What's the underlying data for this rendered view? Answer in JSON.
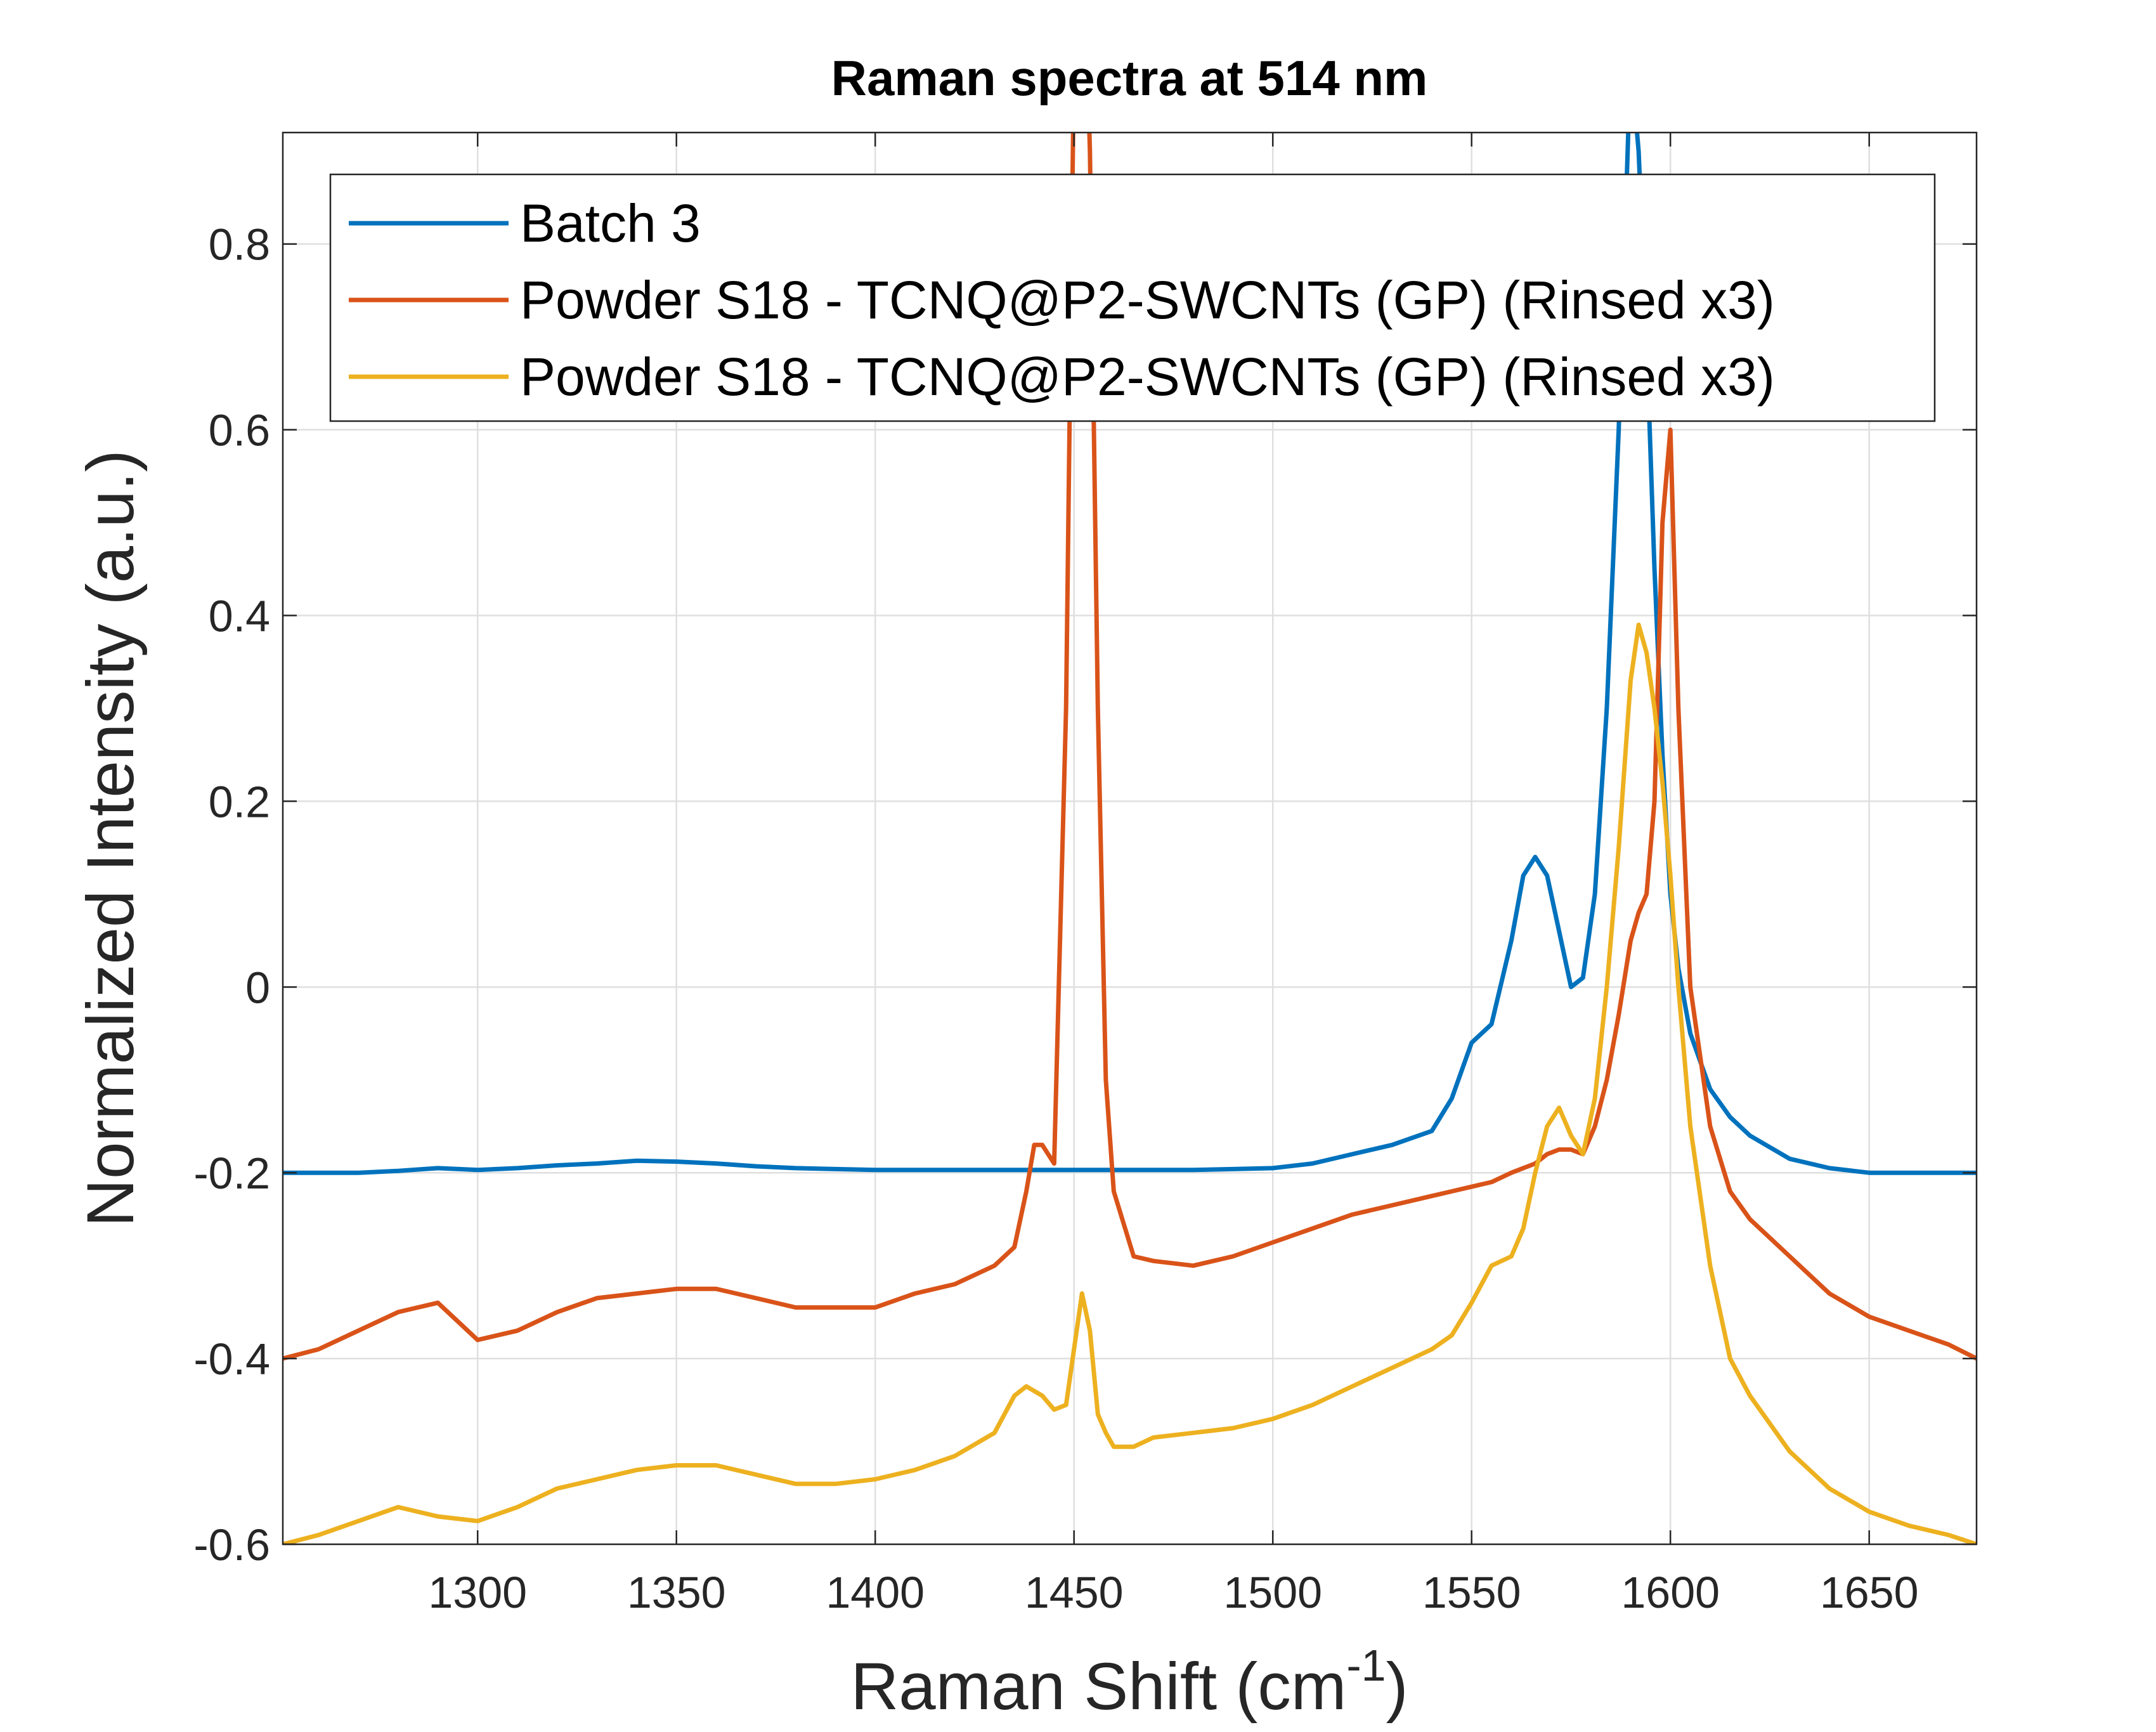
{
  "chart_data": {
    "type": "line",
    "title": "Raman spectra at 514 nm",
    "xlabel": {
      "text": "Raman Shift (cm",
      "sup": "-1",
      "end": ")"
    },
    "ylabel": "Normalized Intensity (a.u.)",
    "xlim": [
      1251,
      1677
    ],
    "ylim": [
      -0.6,
      0.92
    ],
    "xticks": [
      1300,
      1350,
      1400,
      1450,
      1500,
      1550,
      1600,
      1650
    ],
    "yticks": [
      -0.6,
      -0.4,
      -0.2,
      0,
      0.2,
      0.4,
      0.6,
      0.8
    ],
    "grid": true,
    "legend": "upper left",
    "x": [
      1251,
      1260,
      1270,
      1280,
      1290,
      1300,
      1310,
      1320,
      1330,
      1340,
      1350,
      1360,
      1370,
      1380,
      1390,
      1400,
      1410,
      1420,
      1430,
      1435,
      1438,
      1440,
      1442,
      1445,
      1448,
      1450,
      1452,
      1454,
      1456,
      1458,
      1460,
      1465,
      1470,
      1480,
      1490,
      1500,
      1510,
      1520,
      1530,
      1540,
      1545,
      1550,
      1555,
      1560,
      1563,
      1566,
      1569,
      1572,
      1575,
      1578,
      1581,
      1584,
      1587,
      1590,
      1592,
      1594,
      1596,
      1598,
      1600,
      1602,
      1605,
      1610,
      1615,
      1620,
      1630,
      1640,
      1650,
      1660,
      1670,
      1677
    ],
    "series": [
      {
        "name": "Batch 3",
        "color": "#0072BD",
        "values": [
          -0.2,
          -0.2,
          -0.2,
          -0.198,
          -0.195,
          -0.197,
          -0.195,
          -0.192,
          -0.19,
          -0.187,
          -0.188,
          -0.19,
          -0.193,
          -0.195,
          -0.196,
          -0.197,
          -0.197,
          -0.197,
          -0.197,
          -0.197,
          -0.197,
          -0.197,
          -0.197,
          -0.197,
          -0.197,
          -0.197,
          -0.197,
          -0.197,
          -0.197,
          -0.197,
          -0.197,
          -0.197,
          -0.197,
          -0.197,
          -0.196,
          -0.195,
          -0.19,
          -0.18,
          -0.17,
          -0.155,
          -0.12,
          -0.06,
          -0.04,
          0.05,
          0.12,
          0.14,
          0.12,
          0.06,
          0.0,
          0.01,
          0.1,
          0.3,
          0.6,
          1.0,
          0.9,
          0.7,
          0.45,
          0.25,
          0.1,
          0.02,
          -0.05,
          -0.11,
          -0.14,
          -0.16,
          -0.185,
          -0.195,
          -0.2,
          -0.2,
          -0.2,
          -0.2
        ]
      },
      {
        "name": "Powder S18 - TCNQ@P2-SWCNTs (GP) (Rinsed x3)",
        "color": "#D95319",
        "values": [
          -0.4,
          -0.39,
          -0.37,
          -0.35,
          -0.34,
          -0.38,
          -0.37,
          -0.35,
          -0.335,
          -0.33,
          -0.325,
          -0.325,
          -0.335,
          -0.345,
          -0.345,
          -0.345,
          -0.33,
          -0.32,
          -0.3,
          -0.28,
          -0.22,
          -0.17,
          -0.17,
          -0.19,
          0.3,
          1.0,
          1.2,
          0.9,
          0.3,
          -0.1,
          -0.22,
          -0.29,
          -0.295,
          -0.3,
          -0.29,
          -0.275,
          -0.26,
          -0.245,
          -0.235,
          -0.225,
          -0.22,
          -0.215,
          -0.21,
          -0.2,
          -0.195,
          -0.19,
          -0.18,
          -0.175,
          -0.175,
          -0.18,
          -0.15,
          -0.1,
          -0.03,
          0.05,
          0.08,
          0.1,
          0.2,
          0.5,
          0.6,
          0.3,
          0.0,
          -0.15,
          -0.22,
          -0.25,
          -0.29,
          -0.33,
          -0.355,
          -0.37,
          -0.385,
          -0.4
        ]
      },
      {
        "name": "Powder S18 - TCNQ@P2-SWCNTs (GP) (Rinsed x3)",
        "color": "#EDB120",
        "values": [
          -0.6,
          -0.59,
          -0.575,
          -0.56,
          -0.57,
          -0.575,
          -0.56,
          -0.54,
          -0.53,
          -0.52,
          -0.515,
          -0.515,
          -0.525,
          -0.535,
          -0.535,
          -0.53,
          -0.52,
          -0.505,
          -0.48,
          -0.44,
          -0.43,
          -0.435,
          -0.44,
          -0.455,
          -0.45,
          -0.39,
          -0.33,
          -0.37,
          -0.46,
          -0.48,
          -0.495,
          -0.495,
          -0.485,
          -0.48,
          -0.475,
          -0.465,
          -0.45,
          -0.43,
          -0.41,
          -0.39,
          -0.375,
          -0.34,
          -0.3,
          -0.29,
          -0.26,
          -0.2,
          -0.15,
          -0.13,
          -0.16,
          -0.18,
          -0.12,
          0.0,
          0.15,
          0.33,
          0.39,
          0.36,
          0.3,
          0.22,
          0.12,
          0.0,
          -0.15,
          -0.3,
          -0.4,
          -0.44,
          -0.5,
          -0.54,
          -0.565,
          -0.58,
          -0.59,
          -0.6
        ]
      }
    ]
  }
}
